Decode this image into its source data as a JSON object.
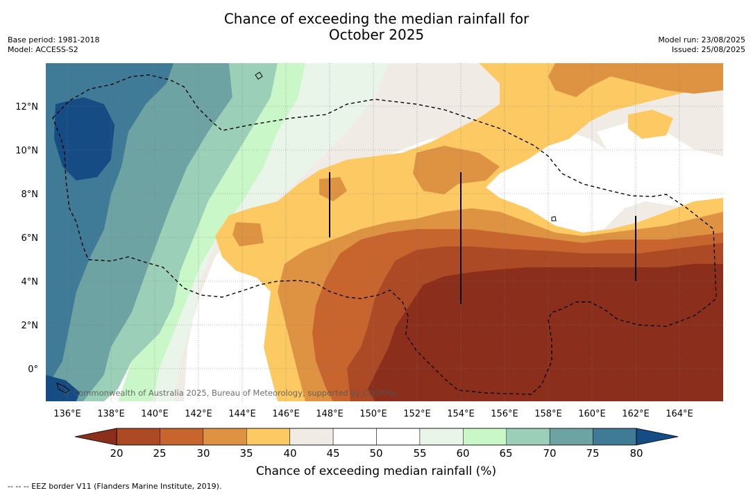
{
  "title_line1": "Chance of exceeding the median rainfall for",
  "title_line2": "October 2025",
  "meta_left": {
    "base_period": "Base period: 1981-2018",
    "model": "Model: ACCESS-S2"
  },
  "meta_right": {
    "model_run": "Model run: 23/08/2025",
    "issued": "Issued: 25/08/2025"
  },
  "map": {
    "lon_ticks": [
      "136°E",
      "138°E",
      "140°E",
      "142°E",
      "144°E",
      "146°E",
      "148°E",
      "150°E",
      "152°E",
      "154°E",
      "156°E",
      "158°E",
      "160°E",
      "162°E",
      "164°E"
    ],
    "lat_ticks": [
      "12°N",
      "10°N",
      "8°N",
      "6°N",
      "4°N",
      "2°N",
      "0°"
    ],
    "copyright": "© Commonwealth of Australia 2025, Bureau of Meteorology, supported by COSPPac"
  },
  "colorbar": {
    "ticks": [
      "20",
      "25",
      "30",
      "35",
      "40",
      "45",
      "50",
      "55",
      "60",
      "65",
      "70",
      "75",
      "80"
    ],
    "label": "Chance of exceeding median rainfall (%)",
    "colors": [
      "#8b2e1b",
      "#ad4a26",
      "#c8642e",
      "#de9343",
      "#fcc963",
      "#f0ece5",
      "#ffffff",
      "#ffffff",
      "#e8f5e8",
      "#caf7c8",
      "#9ccfb8",
      "#6ea3a3",
      "#3f7a97",
      "#154c84"
    ]
  },
  "footnote": "--  --  -- EEZ border V11 (Flanders Marine Institute, 2019)."
}
